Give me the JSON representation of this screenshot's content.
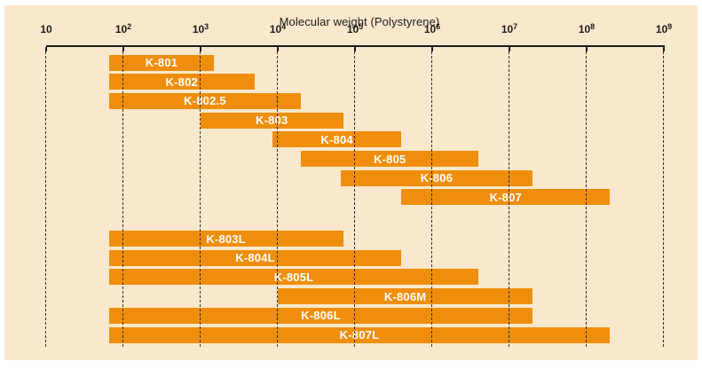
{
  "colors": {
    "bar_orange": "#ef8e0d",
    "panel_background": "#fae8cc",
    "axis_black": "#1a1a1a",
    "bar_label_text": "#ffffff"
  },
  "chart_data": {
    "type": "bar",
    "subtype": "horizontal-log-range-bars",
    "title": "Molecular weight (Polystyrene)",
    "xlabel": "Molecular weight (Polystyrene)",
    "ylabel": "",
    "x_axis": {
      "scale": "log10",
      "min": 10,
      "max": 1000000000,
      "grid": "dashed-vertical",
      "ticks": [
        {
          "label_base": "10",
          "label_exp": "",
          "exponent": 1
        },
        {
          "label_base": "10",
          "label_exp": "2",
          "exponent": 2
        },
        {
          "label_base": "10",
          "label_exp": "3",
          "exponent": 3
        },
        {
          "label_base": "10",
          "label_exp": "4",
          "exponent": 4
        },
        {
          "label_base": "10",
          "label_exp": "5",
          "exponent": 5
        },
        {
          "label_base": "10",
          "label_exp": "6",
          "exponent": 6
        },
        {
          "label_base": "10",
          "label_exp": "7",
          "exponent": 7
        },
        {
          "label_base": "10",
          "label_exp": "8",
          "exponent": 8
        },
        {
          "label_base": "10",
          "label_exp": "9",
          "exponent": 9
        }
      ]
    },
    "bars": [
      {
        "label": "K-801",
        "mw_min": 65,
        "mw_max": 1500,
        "group": 1
      },
      {
        "label": "K-802",
        "mw_min": 65,
        "mw_max": 5000,
        "group": 1
      },
      {
        "label": "K-802.5",
        "mw_min": 65,
        "mw_max": 20000,
        "group": 1
      },
      {
        "label": "K-803",
        "mw_min": 1000,
        "mw_max": 70000,
        "group": 1
      },
      {
        "label": "K-804",
        "mw_min": 8500,
        "mw_max": 400000,
        "group": 1
      },
      {
        "label": "K-805",
        "mw_min": 20000,
        "mw_max": 4000000,
        "group": 1
      },
      {
        "label": "K-806",
        "mw_min": 65000,
        "mw_max": 20000000,
        "group": 1
      },
      {
        "label": "K-807",
        "mw_min": 400000,
        "mw_max": 200000000,
        "group": 1
      },
      {
        "label": "K-803L",
        "mw_min": 65,
        "mw_max": 70000,
        "group": 2
      },
      {
        "label": "K-804L",
        "mw_min": 65,
        "mw_max": 400000,
        "group": 2
      },
      {
        "label": "K-805L",
        "mw_min": 65,
        "mw_max": 4000000,
        "group": 2
      },
      {
        "label": "K-806M",
        "mw_min": 10000,
        "mw_max": 20000000,
        "group": 2
      },
      {
        "label": "K-806L",
        "mw_min": 65,
        "mw_max": 20000000,
        "group": 2
      },
      {
        "label": "K-807L",
        "mw_min": 65,
        "mw_max": 200000000,
        "group": 2
      }
    ]
  }
}
